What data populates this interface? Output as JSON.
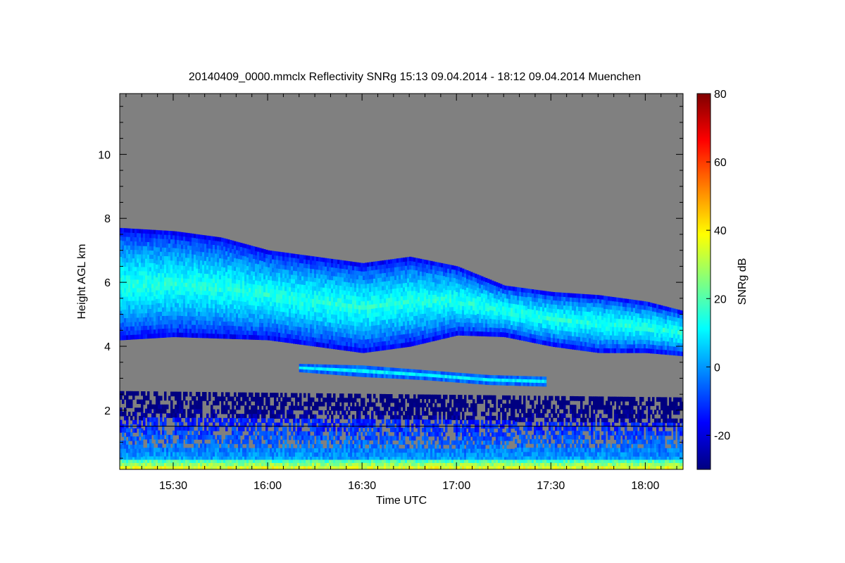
{
  "chart_data": {
    "type": "heatmap",
    "title": "20140409_0000.mmclx Reflectivity SNRg   15:13 09.04.2014 - 18:12 09.04.2014 Muenchen",
    "xlabel": "Time UTC",
    "ylabel": "Height AGL km",
    "colorbar_label": "SNRg dB",
    "x_range_minutes": [
      913,
      1092
    ],
    "y_range_km": [
      0.15,
      11.9
    ],
    "x_ticks": [
      {
        "minute": 930,
        "label": "15:30"
      },
      {
        "minute": 960,
        "label": "16:00"
      },
      {
        "minute": 990,
        "label": "16:30"
      },
      {
        "minute": 1020,
        "label": "17:00"
      },
      {
        "minute": 1050,
        "label": "17:30"
      },
      {
        "minute": 1080,
        "label": "18:00"
      }
    ],
    "y_ticks": [
      {
        "value": 2,
        "label": "2"
      },
      {
        "value": 4,
        "label": "4"
      },
      {
        "value": 6,
        "label": "6"
      },
      {
        "value": 8,
        "label": "8"
      },
      {
        "value": 10,
        "label": "10"
      }
    ],
    "color_range": [
      -30,
      80
    ],
    "color_ticks": [
      {
        "value": -20,
        "label": "-20"
      },
      {
        "value": 0,
        "label": "0"
      },
      {
        "value": 20,
        "label": "20"
      },
      {
        "value": 40,
        "label": "40"
      },
      {
        "value": 60,
        "label": "60"
      },
      {
        "value": 80,
        "label": "80"
      }
    ],
    "colormap": [
      "#000080",
      "#0000ff",
      "#0080ff",
      "#00ffff",
      "#80ff80",
      "#ffff00",
      "#ff8000",
      "#ff0000",
      "#800000"
    ],
    "background_color": "#808080",
    "reference_line_height_km": 1.5,
    "features": [
      {
        "name": "upper cloud layer",
        "base_km": [
          [
            913,
            4.2
          ],
          [
            930,
            4.3
          ],
          [
            960,
            4.2
          ],
          [
            975,
            4.0
          ],
          [
            990,
            3.8
          ],
          [
            1005,
            4.0
          ],
          [
            1020,
            4.35
          ],
          [
            1035,
            4.3
          ],
          [
            1050,
            4.0
          ],
          [
            1065,
            3.8
          ],
          [
            1080,
            3.8
          ],
          [
            1092,
            3.7
          ]
        ],
        "top_km": [
          [
            913,
            7.7
          ],
          [
            930,
            7.6
          ],
          [
            945,
            7.4
          ],
          [
            960,
            7.0
          ],
          [
            975,
            6.8
          ],
          [
            990,
            6.6
          ],
          [
            1005,
            6.8
          ],
          [
            1020,
            6.5
          ],
          [
            1035,
            5.9
          ],
          [
            1050,
            5.7
          ],
          [
            1065,
            5.6
          ],
          [
            1080,
            5.4
          ],
          [
            1092,
            5.1
          ]
        ],
        "snr_core_db": 15
      },
      {
        "name": "mid-level thin layer",
        "base_km": [
          [
            970,
            3.2
          ],
          [
            990,
            3.05
          ],
          [
            1010,
            2.95
          ],
          [
            1030,
            2.8
          ],
          [
            1048,
            2.75
          ]
        ],
        "top_km": [
          [
            970,
            3.45
          ],
          [
            990,
            3.4
          ],
          [
            1010,
            3.25
          ],
          [
            1030,
            3.1
          ],
          [
            1048,
            3.05
          ]
        ],
        "snr_core_db": 10
      },
      {
        "name": "boundary layer echoes",
        "base_km": [
          [
            913,
            0.15
          ],
          [
            1092,
            0.15
          ]
        ],
        "top_km": [
          [
            913,
            2.6
          ],
          [
            1092,
            2.4
          ]
        ],
        "snr_core_db": 5
      },
      {
        "name": "surface clutter",
        "base_km": [
          [
            913,
            0.15
          ],
          [
            1092,
            0.15
          ]
        ],
        "top_km": [
          [
            913,
            0.45
          ],
          [
            1092,
            0.45
          ]
        ],
        "snr_core_db": 40
      }
    ]
  }
}
